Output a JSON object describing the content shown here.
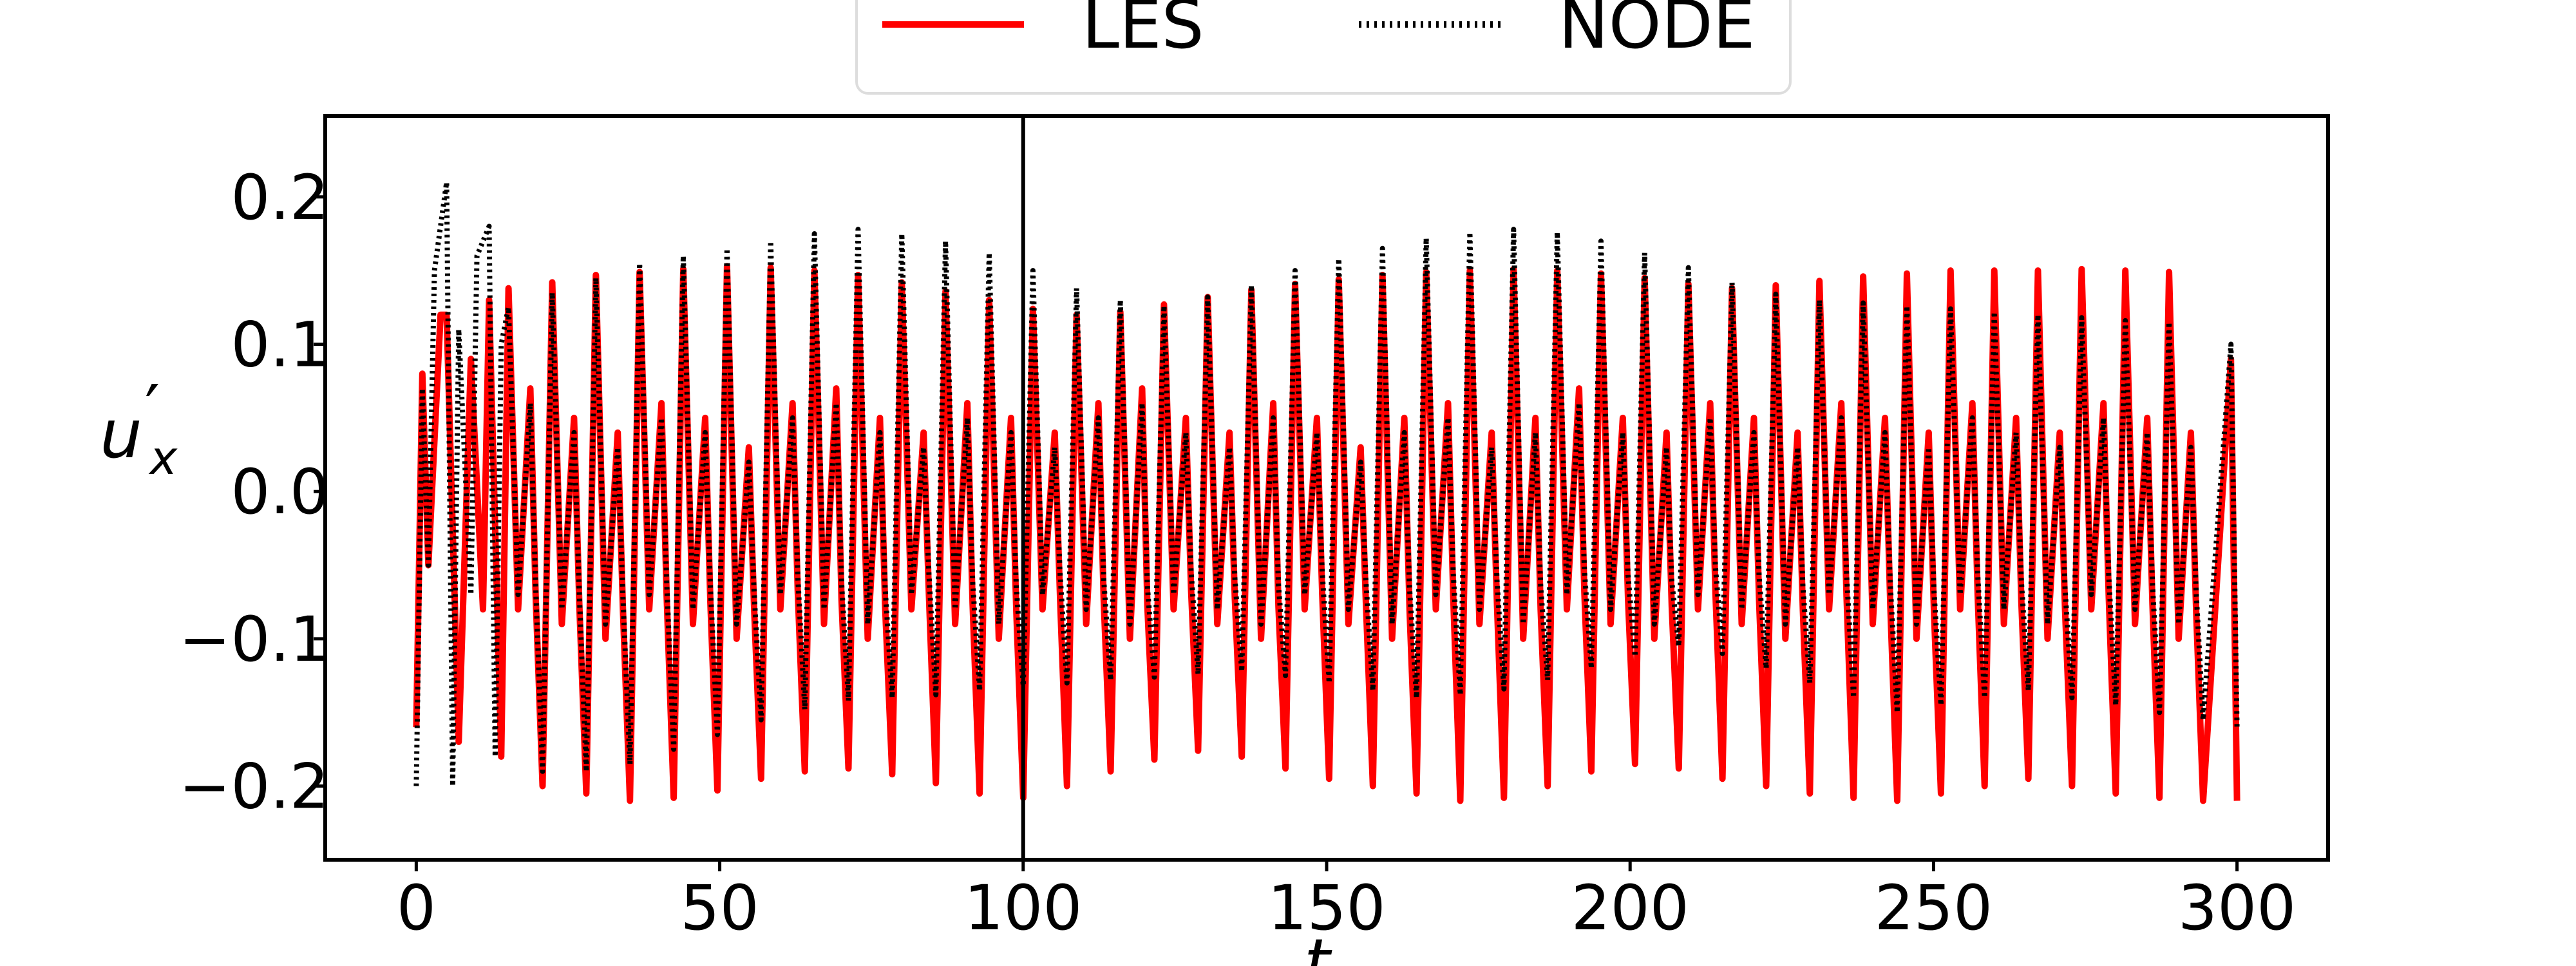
{
  "chart_data": {
    "type": "line",
    "title": "",
    "xlabel": "t",
    "ylabel": "u′x",
    "ylabel_base": "u",
    "ylabel_sub": "x",
    "xlim": [
      -15,
      315
    ],
    "ylim": [
      -0.25,
      0.255
    ],
    "xticks": [
      0,
      50,
      100,
      150,
      200,
      250,
      300
    ],
    "xtick_labels": [
      "0",
      "50",
      "100",
      "150",
      "200",
      "250",
      "300"
    ],
    "yticks": [
      0.2,
      0.1,
      0.0,
      -0.1,
      -0.2
    ],
    "ytick_labels": [
      "0.2",
      "0.1",
      "0.0",
      "−0.1",
      "−0.2"
    ],
    "grid": false,
    "legend": {
      "placement": "top-center, above axes",
      "entries": [
        "LES",
        "NODE"
      ]
    },
    "annotations": [
      {
        "type": "vline",
        "x": 100,
        "color": "#000000"
      }
    ],
    "period": 7.2,
    "series": [
      {
        "name": "LES",
        "color": "#ff0000",
        "style": "solid",
        "x": [
          0,
          1,
          2,
          4,
          5,
          7,
          9,
          11,
          12,
          14
        ],
        "values": [
          -0.16,
          0.08,
          -0.05,
          0.12,
          0.12,
          -0.17,
          0.09,
          -0.08,
          0.13,
          -0.18
        ],
        "peaks": [
          0.138,
          0.142,
          0.147,
          0.149,
          0.151,
          0.153,
          0.152,
          0.15,
          0.147,
          0.142,
          0.136,
          0.13,
          0.124,
          0.12,
          0.122,
          0.127,
          0.132,
          0.137,
          0.141,
          0.144,
          0.147,
          0.149,
          0.15,
          0.151,
          0.15,
          0.148,
          0.145,
          0.141,
          0.138,
          0.14,
          0.143,
          0.146,
          0.148,
          0.15,
          0.15,
          0.15,
          0.151,
          0.15,
          0.149,
          0.151
        ],
        "troughs": [
          -0.2,
          -0.205,
          -0.21,
          -0.208,
          -0.203,
          -0.195,
          -0.19,
          -0.188,
          -0.192,
          -0.198,
          -0.205,
          -0.208,
          -0.2,
          -0.19,
          -0.182,
          -0.176,
          -0.18,
          -0.188,
          -0.195,
          -0.2,
          -0.205,
          -0.21,
          -0.208,
          -0.2,
          -0.19,
          -0.185,
          -0.188,
          -0.195,
          -0.2,
          -0.205,
          -0.208,
          -0.21,
          -0.205,
          -0.2,
          -0.195,
          -0.2,
          -0.205,
          -0.208,
          -0.21,
          -0.205
        ],
        "mids": [
          0.07,
          0.05,
          0.04,
          0.06,
          0.05,
          0.03,
          0.06,
          0.07,
          0.05,
          0.04,
          0.06,
          0.05,
          0.04,
          0.06,
          0.07,
          0.05,
          0.04,
          0.06,
          0.05,
          0.03,
          0.05,
          0.06,
          0.04,
          0.05,
          0.07,
          0.05,
          0.04,
          0.06,
          0.05,
          0.04,
          0.06,
          0.05,
          0.04,
          0.06,
          0.05,
          0.04,
          0.06,
          0.05,
          0.04,
          0.06
        ],
        "lows": [
          -0.08,
          -0.09,
          -0.1,
          -0.08,
          -0.09,
          -0.1,
          -0.08,
          -0.09,
          -0.1,
          -0.08,
          -0.09,
          -0.1,
          -0.08,
          -0.09,
          -0.1,
          -0.08,
          -0.09,
          -0.1,
          -0.08,
          -0.09,
          -0.1,
          -0.08,
          -0.09,
          -0.1,
          -0.08,
          -0.09,
          -0.1,
          -0.08,
          -0.09,
          -0.1,
          -0.08,
          -0.09,
          -0.1,
          -0.08,
          -0.09,
          -0.1,
          -0.08,
          -0.09,
          -0.1,
          -0.08
        ],
        "end_x": [
          299,
          300
        ],
        "end_values": [
          0.09,
          -0.21
        ]
      },
      {
        "name": "NODE",
        "color": "#000000",
        "style": "dotted",
        "x": [
          0,
          1,
          2,
          3,
          5,
          6,
          7,
          9,
          10,
          12,
          13,
          14
        ],
        "values": [
          -0.2,
          0.07,
          -0.05,
          0.15,
          0.21,
          -0.2,
          0.11,
          -0.07,
          0.16,
          0.18,
          -0.18,
          0.1
        ],
        "peaks": [
          0.125,
          0.135,
          0.145,
          0.155,
          0.16,
          0.165,
          0.17,
          0.175,
          0.178,
          0.175,
          0.17,
          0.162,
          0.15,
          0.138,
          0.13,
          0.126,
          0.132,
          0.14,
          0.15,
          0.158,
          0.165,
          0.172,
          0.176,
          0.178,
          0.176,
          0.17,
          0.162,
          0.152,
          0.142,
          0.134,
          0.13,
          0.128,
          0.126,
          0.124,
          0.122,
          0.12,
          0.118,
          0.116,
          0.115,
          0.114
        ],
        "troughs": [
          -0.19,
          -0.19,
          -0.185,
          -0.175,
          -0.165,
          -0.155,
          -0.148,
          -0.142,
          -0.14,
          -0.138,
          -0.135,
          -0.132,
          -0.13,
          -0.128,
          -0.126,
          -0.124,
          -0.122,
          -0.125,
          -0.13,
          -0.135,
          -0.14,
          -0.138,
          -0.134,
          -0.128,
          -0.12,
          -0.112,
          -0.105,
          -0.11,
          -0.12,
          -0.13,
          -0.14,
          -0.15,
          -0.145,
          -0.14,
          -0.135,
          -0.14,
          -0.145,
          -0.15,
          -0.155,
          -0.158
        ],
        "mids": [
          0.06,
          0.04,
          0.03,
          0.05,
          0.04,
          0.02,
          0.05,
          0.06,
          0.04,
          0.03,
          0.05,
          0.04,
          0.03,
          0.05,
          0.06,
          0.04,
          0.03,
          0.05,
          0.04,
          0.02,
          0.04,
          0.05,
          0.03,
          0.04,
          0.06,
          0.04,
          0.03,
          0.05,
          0.04,
          0.03,
          0.05,
          0.04,
          0.03,
          0.05,
          0.04,
          0.03,
          0.05,
          0.04,
          0.03,
          0.05
        ],
        "lows": [
          -0.07,
          -0.08,
          -0.09,
          -0.07,
          -0.08,
          -0.09,
          -0.07,
          -0.08,
          -0.09,
          -0.07,
          -0.08,
          -0.09,
          -0.07,
          -0.08,
          -0.09,
          -0.07,
          -0.08,
          -0.09,
          -0.07,
          -0.08,
          -0.09,
          -0.07,
          -0.08,
          -0.09,
          -0.07,
          -0.08,
          -0.09,
          -0.07,
          -0.08,
          -0.09,
          -0.07,
          -0.08,
          -0.09,
          -0.07,
          -0.08,
          -0.09,
          -0.07,
          -0.08,
          -0.09,
          -0.07
        ],
        "end_x": [
          299,
          300
        ],
        "end_values": [
          0.1,
          -0.16
        ]
      }
    ]
  }
}
